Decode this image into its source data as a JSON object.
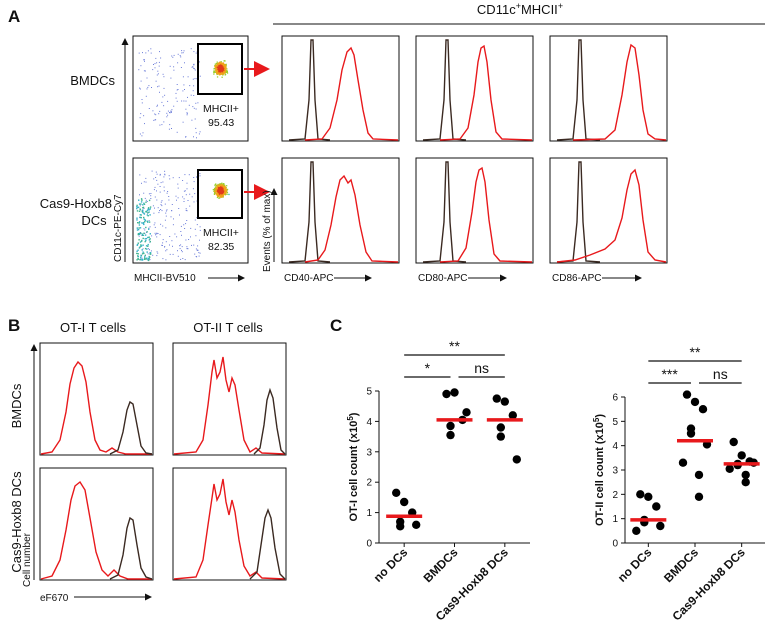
{
  "panels": {
    "a": "A",
    "b": "B",
    "c": "C"
  },
  "panel_a": {
    "header_main": "CD11c",
    "header_sup1": "+",
    "header_mid": "MHCII",
    "header_sup2": "+",
    "rows": [
      {
        "label_lines": [
          "BMDCs"
        ],
        "gate_name": "MHCII+",
        "gate_value": "95.43"
      },
      {
        "label_lines": [
          "Cas9-Hoxb8",
          "DCs"
        ],
        "gate_name": "MHCII+",
        "gate_value": "82.35"
      }
    ],
    "scatter_yaxis": "CD11c-PE-Cy7",
    "scatter_xaxis": "MHCII-BV510",
    "hist_yaxis": "Events (% of max)",
    "hist_xaxes": [
      "CD40-APC",
      "CD80-APC",
      "CD86-APC"
    ],
    "colors": {
      "isotype": "#3b2a22",
      "stain": "#e8191c",
      "arrow": "#e8191c"
    }
  },
  "panel_b": {
    "columns": [
      "OT-I T cells",
      "OT-II T cells"
    ],
    "rows": [
      "BMDCs",
      "Cas9-Hoxb8 DCs"
    ],
    "yaxis": "Cell number",
    "xaxis": "eF670"
  },
  "chart_data": [
    {
      "type": "scatter",
      "title": "",
      "xlabel": "",
      "ylabel_main": "OT-I cell count (x10",
      "ylabel_sup": "5",
      "ylabel_end": ")",
      "ylim": [
        0,
        5
      ],
      "yticks": [
        "0",
        "1",
        "2",
        "3",
        "4",
        "5"
      ],
      "categories": [
        "no DCs",
        "BMDCs",
        "Cas9-Hoxb8 DCs"
      ],
      "series": [
        {
          "name": "no DCs",
          "values": [
            1.65,
            1.35,
            1.0,
            0.7,
            0.55,
            0.6
          ],
          "mean": 0.88
        },
        {
          "name": "BMDCs",
          "values": [
            4.9,
            4.95,
            4.05,
            3.85,
            3.55,
            4.3
          ],
          "mean": 4.05
        },
        {
          "name": "Cas9-Hoxb8 DCs",
          "values": [
            4.75,
            4.65,
            4.2,
            3.8,
            3.5,
            2.75
          ],
          "mean": 4.05
        }
      ],
      "significance": [
        {
          "label": "**",
          "from": 0,
          "to": 2
        },
        {
          "label": "*",
          "from": 0,
          "to": 1
        },
        {
          "label": "ns",
          "from": 1,
          "to": 2
        }
      ]
    },
    {
      "type": "scatter",
      "title": "",
      "xlabel": "",
      "ylabel_main": "OT-II cell count (x10",
      "ylabel_sup": "5",
      "ylabel_end": ")",
      "ylim": [
        0,
        6
      ],
      "yticks": [
        "0",
        "1",
        "2",
        "3",
        "4",
        "5",
        "6"
      ],
      "categories": [
        "no DCs",
        "BMDCs",
        "Cas9-Hoxb8 DCs"
      ],
      "series": [
        {
          "name": "no DCs",
          "values": [
            2.0,
            1.9,
            1.5,
            0.95,
            0.85,
            0.7,
            0.5
          ],
          "mean": 0.95
        },
        {
          "name": "BMDCs",
          "values": [
            6.1,
            5.8,
            5.5,
            4.7,
            4.5,
            4.05,
            3.3,
            2.8,
            1.9
          ],
          "mean": 4.2
        },
        {
          "name": "Cas9-Hoxb8 DCs",
          "values": [
            4.15,
            3.6,
            3.35,
            3.25,
            3.2,
            3.3,
            3.05,
            2.8,
            2.5
          ],
          "mean": 3.25
        }
      ],
      "significance": [
        {
          "label": "**",
          "from": 0,
          "to": 2
        },
        {
          "label": "***",
          "from": 0,
          "to": 1
        },
        {
          "label": "ns",
          "from": 1,
          "to": 2
        }
      ]
    }
  ]
}
